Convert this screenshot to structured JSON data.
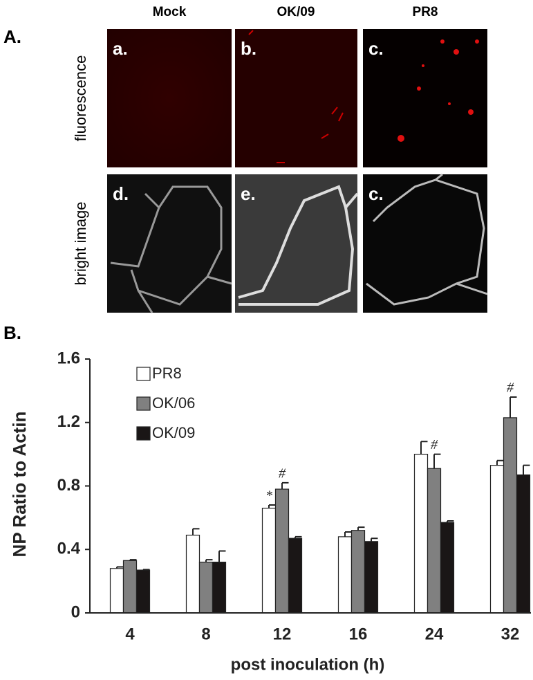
{
  "panel_a": {
    "label": "A.",
    "columns": [
      "Mock",
      "OK/09",
      "PR8"
    ],
    "rows": [
      "fluorescence",
      "bright image"
    ],
    "images": [
      "a.",
      "b.",
      "c.",
      "d.",
      "e.",
      "c."
    ]
  },
  "chart_data": {
    "type": "bar",
    "panel_label": "B.",
    "xlabel": "post inoculation (h)",
    "ylabel": "NP Ratio to Actin",
    "categories": [
      "4",
      "8",
      "12",
      "16",
      "24",
      "32"
    ],
    "series": [
      {
        "name": "PR8",
        "color": "#ffffff",
        "values": [
          0.28,
          0.49,
          0.66,
          0.48,
          1.0,
          0.93
        ],
        "errors": [
          0.01,
          0.04,
          0.02,
          0.03,
          0.08,
          0.03
        ]
      },
      {
        "name": "OK/06",
        "color": "#808080",
        "values": [
          0.33,
          0.32,
          0.78,
          0.52,
          0.91,
          1.23
        ],
        "errors": [
          0.005,
          0.015,
          0.04,
          0.02,
          0.09,
          0.13
        ]
      },
      {
        "name": "OK/09",
        "color": "#1a1616",
        "values": [
          0.27,
          0.32,
          0.47,
          0.45,
          0.57,
          0.87
        ],
        "errors": [
          0.003,
          0.07,
          0.01,
          0.02,
          0.01,
          0.06
        ]
      }
    ],
    "annotations": [
      {
        "text": "*",
        "x": "12",
        "series": "PR8"
      },
      {
        "text": "#",
        "x": "12",
        "series": "OK/06"
      },
      {
        "text": "#",
        "x": "24",
        "series": "OK/06"
      },
      {
        "text": "#",
        "x": "32",
        "series": "OK/06"
      }
    ],
    "ylim": [
      0,
      1.6
    ],
    "yticks": [
      0,
      0.4,
      0.8,
      1.2,
      1.6
    ],
    "legend": "upper-left"
  }
}
